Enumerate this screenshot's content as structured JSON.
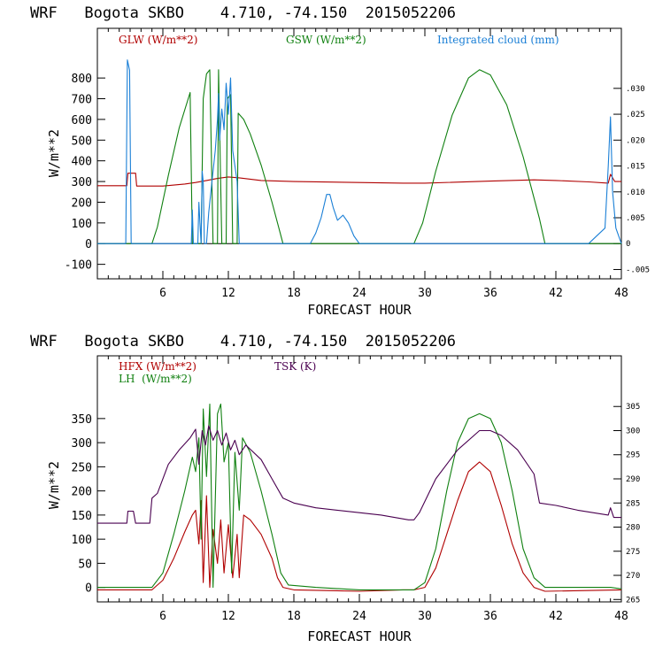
{
  "chart_data": [
    {
      "type": "line",
      "title": "WRF   Bogota SKBO    4.710, -74.150  2015052206",
      "xlabel": "FORECAST HOUR",
      "ylabel": "W/m**2",
      "xlim": [
        0,
        48
      ],
      "ylim": [
        -170,
        1040
      ],
      "y2lim": [
        -0.0068,
        0.0416
      ],
      "x_ticks": [
        6,
        12,
        18,
        24,
        30,
        36,
        42,
        48
      ],
      "x_tick_labels": [
        "6",
        "12",
        "18",
        "24",
        "30",
        "36",
        "42",
        "48"
      ],
      "y_ticks": [
        800,
        700,
        600,
        500,
        400,
        300,
        200,
        100,
        0,
        -100
      ],
      "y_tick_labels": [
        "800",
        "700",
        "600",
        "500",
        "400",
        "300",
        "200",
        "100",
        "0",
        "-100"
      ],
      "y2_ticks": [
        0.03,
        0.025,
        0.02,
        0.015,
        0.01,
        0.005,
        0,
        -0.005
      ],
      "y2_tick_labels": [
        ".030",
        ".025",
        ".020",
        ".015",
        ".010",
        ".005",
        "0",
        "-.005"
      ],
      "legend": [
        "GLW (W/m**2)",
        "GSW (W/m**2)",
        "Integrated cloud (mm)"
      ],
      "series": [
        {
          "name": "GLW (W/m**2)",
          "color": "#b00000",
          "axis": "left",
          "points": [
            [
              0,
              280
            ],
            [
              2.7,
              280
            ],
            [
              2.8,
              340
            ],
            [
              3.5,
              340
            ],
            [
              3.6,
              278
            ],
            [
              6,
              278
            ],
            [
              8,
              288
            ],
            [
              9,
              295
            ],
            [
              10,
              305
            ],
            [
              11,
              315
            ],
            [
              12,
              322
            ],
            [
              13,
              318
            ],
            [
              15,
              305
            ],
            [
              18,
              300
            ],
            [
              24,
              295
            ],
            [
              28,
              292
            ],
            [
              30,
              292
            ],
            [
              36,
              302
            ],
            [
              40,
              308
            ],
            [
              42,
              305
            ],
            [
              45,
              298
            ],
            [
              46.8,
              292
            ],
            [
              47,
              335
            ],
            [
              47.4,
              300
            ],
            [
              48,
              300
            ]
          ]
        },
        {
          "name": "GSW (W/m**2)",
          "color": "#108010",
          "axis": "left",
          "points": [
            [
              0,
              0
            ],
            [
              5,
              0
            ],
            [
              5.5,
              80
            ],
            [
              6.5,
              330
            ],
            [
              7.5,
              560
            ],
            [
              8.5,
              730
            ],
            [
              8.7,
              0
            ],
            [
              9.5,
              0
            ],
            [
              9.7,
              700
            ],
            [
              10,
              820
            ],
            [
              10.3,
              840
            ],
            [
              10.6,
              0
            ],
            [
              11,
              0
            ],
            [
              11.1,
              840
            ],
            [
              11.4,
              0
            ],
            [
              11.8,
              0
            ],
            [
              11.9,
              700
            ],
            [
              12.2,
              720
            ],
            [
              12.4,
              0
            ],
            [
              12.8,
              0
            ],
            [
              12.9,
              630
            ],
            [
              13.4,
              600
            ],
            [
              14,
              530
            ],
            [
              15,
              380
            ],
            [
              16,
              200
            ],
            [
              16.7,
              60
            ],
            [
              17,
              0
            ],
            [
              29,
              0
            ],
            [
              29.8,
              100
            ],
            [
              31,
              350
            ],
            [
              32.5,
              620
            ],
            [
              34,
              800
            ],
            [
              35,
              840
            ],
            [
              36,
              815
            ],
            [
              37.5,
              670
            ],
            [
              39,
              420
            ],
            [
              40.5,
              120
            ],
            [
              41,
              0
            ],
            [
              48,
              0
            ]
          ]
        },
        {
          "name": "Integrated cloud (mm)",
          "color": "#1a7fd6",
          "axis": "right",
          "points": [
            [
              0,
              0
            ],
            [
              2.6,
              0
            ],
            [
              2.75,
              0.0355
            ],
            [
              2.95,
              0.0335
            ],
            [
              3.1,
              0
            ],
            [
              8.6,
              0
            ],
            [
              8.7,
              0.0065
            ],
            [
              8.8,
              0
            ],
            [
              9.2,
              0
            ],
            [
              9.3,
              0.008
            ],
            [
              9.4,
              0.004
            ],
            [
              9.5,
              0
            ],
            [
              9.6,
              0.014
            ],
            [
              9.7,
              0.012
            ],
            [
              9.8,
              0
            ],
            [
              10,
              0
            ],
            [
              10.2,
              0.006
            ],
            [
              10.5,
              0.012
            ],
            [
              10.8,
              0.018
            ],
            [
              11,
              0.024
            ],
            [
              11.1,
              0.029
            ],
            [
              11.2,
              0.02
            ],
            [
              11.4,
              0.026
            ],
            [
              11.6,
              0.022
            ],
            [
              11.8,
              0.031
            ],
            [
              12,
              0.025
            ],
            [
              12.2,
              0.032
            ],
            [
              12.4,
              0.018
            ],
            [
              12.6,
              0.015
            ],
            [
              12.8,
              0.012
            ],
            [
              13,
              0
            ],
            [
              19.5,
              0
            ],
            [
              20,
              0.002
            ],
            [
              20.5,
              0.005
            ],
            [
              21,
              0.0095
            ],
            [
              21.3,
              0.0095
            ],
            [
              21.6,
              0.007
            ],
            [
              22,
              0.0045
            ],
            [
              22.5,
              0.0055
            ],
            [
              23,
              0.004
            ],
            [
              23.5,
              0.0015
            ],
            [
              24,
              0
            ],
            [
              45,
              0
            ],
            [
              46.5,
              0.003
            ],
            [
              46.8,
              0.015
            ],
            [
              47,
              0.0245
            ],
            [
              47.2,
              0.01
            ],
            [
              47.5,
              0.003
            ],
            [
              48,
              0
            ]
          ]
        }
      ]
    },
    {
      "type": "line",
      "title": "WRF   Bogota SKBO    4.710, -74.150  2015052206",
      "xlabel": "FORECAST HOUR",
      "ylabel": "W/m**2",
      "xlim": [
        0,
        48
      ],
      "ylim": [
        -30,
        480
      ],
      "y2lim": [
        264.5,
        315.5
      ],
      "x_ticks": [
        6,
        12,
        18,
        24,
        30,
        36,
        42,
        48
      ],
      "x_tick_labels": [
        "6",
        "12",
        "18",
        "24",
        "30",
        "36",
        "42",
        "48"
      ],
      "y_ticks": [
        350,
        300,
        250,
        200,
        150,
        100,
        50,
        0
      ],
      "y_tick_labels": [
        "350",
        "300",
        "250",
        "200",
        "150",
        "100",
        "50",
        "0"
      ],
      "y2_ticks": [
        305,
        300,
        295,
        290,
        285,
        280,
        275,
        270,
        265
      ],
      "y2_tick_labels": [
        "305",
        "300",
        "295",
        "290",
        "285",
        "280",
        "275",
        "270",
        "265"
      ],
      "legend": [
        "HFX (W/m**2)",
        "LH  (W/m**2)",
        "TSK (K)"
      ],
      "series": [
        {
          "name": "HFX (W/m**2)",
          "color": "#b00000",
          "axis": "left",
          "points": [
            [
              0,
              -5
            ],
            [
              4,
              -5
            ],
            [
              5,
              -5
            ],
            [
              6,
              15
            ],
            [
              7,
              60
            ],
            [
              8,
              115
            ],
            [
              8.7,
              150
            ],
            [
              9,
              160
            ],
            [
              9.3,
              90
            ],
            [
              9.5,
              180
            ],
            [
              9.7,
              10
            ],
            [
              10,
              190
            ],
            [
              10.3,
              0
            ],
            [
              10.6,
              120
            ],
            [
              11,
              50
            ],
            [
              11.3,
              140
            ],
            [
              11.6,
              30
            ],
            [
              12,
              130
            ],
            [
              12.4,
              20
            ],
            [
              12.8,
              110
            ],
            [
              13,
              20
            ],
            [
              13.4,
              150
            ],
            [
              14,
              140
            ],
            [
              15,
              110
            ],
            [
              16,
              60
            ],
            [
              16.5,
              20
            ],
            [
              17,
              0
            ],
            [
              18,
              -5
            ],
            [
              24,
              -8
            ],
            [
              28,
              -5
            ],
            [
              29,
              -5
            ],
            [
              30,
              0
            ],
            [
              31,
              40
            ],
            [
              32,
              110
            ],
            [
              33,
              180
            ],
            [
              34,
              240
            ],
            [
              35,
              260
            ],
            [
              36,
              240
            ],
            [
              37,
              170
            ],
            [
              38,
              90
            ],
            [
              39,
              30
            ],
            [
              40,
              0
            ],
            [
              41,
              -8
            ],
            [
              48,
              -5
            ]
          ]
        },
        {
          "name": "LH  (W/m**2)",
          "color": "#108010",
          "axis": "left",
          "points": [
            [
              0,
              0
            ],
            [
              2,
              0
            ],
            [
              4,
              0
            ],
            [
              5,
              0
            ],
            [
              6,
              30
            ],
            [
              7,
              110
            ],
            [
              8,
              200
            ],
            [
              8.7,
              270
            ],
            [
              9,
              240
            ],
            [
              9.3,
              310
            ],
            [
              9.5,
              100
            ],
            [
              9.7,
              370
            ],
            [
              10,
              230
            ],
            [
              10.3,
              380
            ],
            [
              10.6,
              0
            ],
            [
              11,
              360
            ],
            [
              11.3,
              380
            ],
            [
              11.6,
              260
            ],
            [
              12,
              300
            ],
            [
              12.3,
              30
            ],
            [
              12.6,
              280
            ],
            [
              13,
              160
            ],
            [
              13.3,
              310
            ],
            [
              14,
              280
            ],
            [
              15,
              200
            ],
            [
              16,
              110
            ],
            [
              16.8,
              30
            ],
            [
              17.5,
              5
            ],
            [
              20,
              0
            ],
            [
              24,
              -5
            ],
            [
              29,
              -5
            ],
            [
              30,
              10
            ],
            [
              31,
              80
            ],
            [
              32,
              200
            ],
            [
              33,
              300
            ],
            [
              34,
              350
            ],
            [
              35,
              360
            ],
            [
              36,
              350
            ],
            [
              37,
              300
            ],
            [
              38,
              200
            ],
            [
              39,
              80
            ],
            [
              40,
              20
            ],
            [
              41,
              0
            ],
            [
              47,
              0
            ],
            [
              48,
              -3
            ]
          ]
        },
        {
          "name": "TSK (K)",
          "color": "#4a0050",
          "axis": "right",
          "points": [
            [
              0,
              280.8
            ],
            [
              2.7,
              280.8
            ],
            [
              2.8,
              283.3
            ],
            [
              3.3,
              283.3
            ],
            [
              3.5,
              280.8
            ],
            [
              4.8,
              280.8
            ],
            [
              5,
              286
            ],
            [
              5.5,
              287
            ],
            [
              6.5,
              293
            ],
            [
              7.5,
              296
            ],
            [
              8.5,
              298.5
            ],
            [
              9,
              300.3
            ],
            [
              9.3,
              293
            ],
            [
              9.6,
              300
            ],
            [
              9.9,
              297
            ],
            [
              10.2,
              301
            ],
            [
              10.6,
              298
            ],
            [
              11,
              300
            ],
            [
              11.4,
              297
            ],
            [
              11.8,
              299.5
            ],
            [
              12.2,
              296
            ],
            [
              12.6,
              298
            ],
            [
              13,
              295
            ],
            [
              13.6,
              297
            ],
            [
              15,
              294
            ],
            [
              16,
              290
            ],
            [
              17,
              286
            ],
            [
              18,
              285
            ],
            [
              20,
              284
            ],
            [
              24,
              283
            ],
            [
              26,
              282.5
            ],
            [
              28.5,
              281.5
            ],
            [
              29,
              281.5
            ],
            [
              29.5,
              283
            ],
            [
              31,
              290
            ],
            [
              33,
              296
            ],
            [
              35,
              300
            ],
            [
              36,
              300
            ],
            [
              37,
              299
            ],
            [
              38.5,
              296
            ],
            [
              40,
              291
            ],
            [
              40.5,
              285
            ],
            [
              42,
              284.5
            ],
            [
              44,
              283.5
            ],
            [
              46.8,
              282.5
            ],
            [
              47,
              284
            ],
            [
              47.3,
              282
            ],
            [
              48,
              282
            ]
          ]
        }
      ]
    }
  ]
}
